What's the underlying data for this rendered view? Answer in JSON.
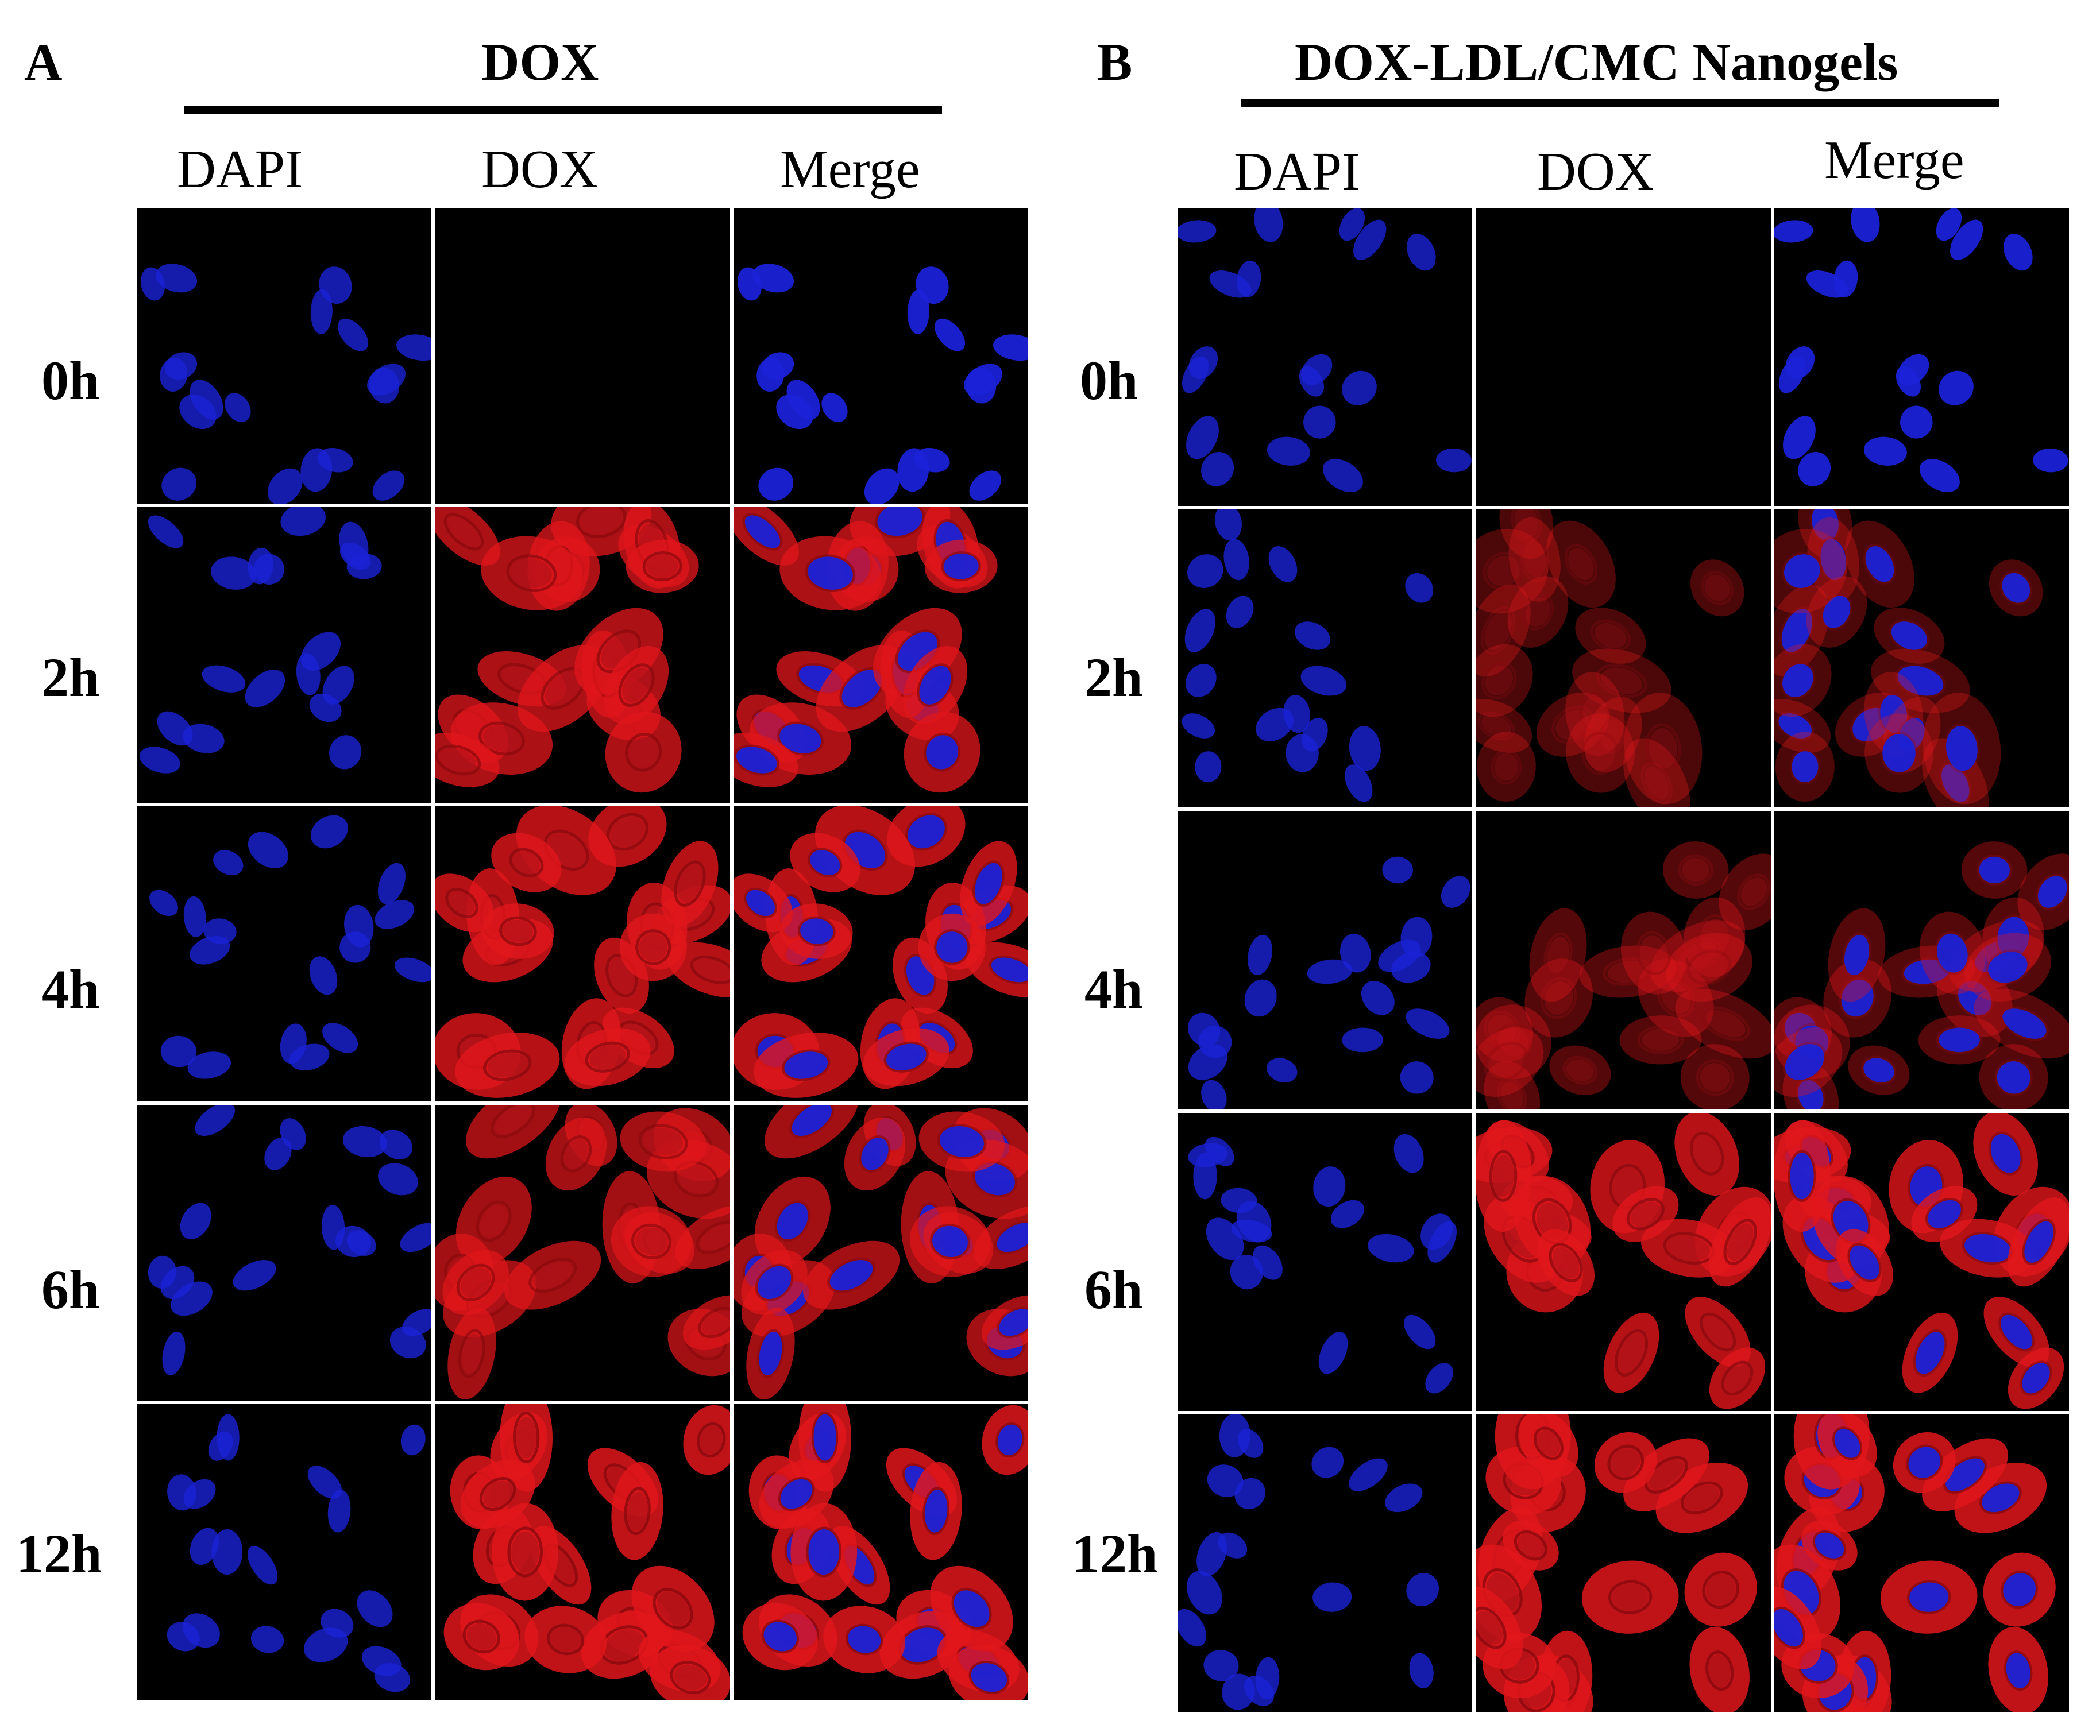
{
  "colors": {
    "background": "#ffffff",
    "dapi": "#1a22d6",
    "dox": "#e0161b",
    "field": "#000000"
  },
  "panels": [
    {
      "letter": "A",
      "title": "DOX",
      "columns": [
        "DAPI",
        "DOX",
        "Merge"
      ],
      "rows": [
        {
          "time": "0h",
          "dox_level": 0.0
        },
        {
          "time": "2h",
          "dox_level": 0.9
        },
        {
          "time": "4h",
          "dox_level": 0.95
        },
        {
          "time": "6h",
          "dox_level": 0.85
        },
        {
          "time": "12h",
          "dox_level": 1.0
        }
      ]
    },
    {
      "letter": "B",
      "title": "DOX-LDL/CMC Nanogels",
      "columns": [
        "DAPI",
        "DOX",
        "Merge"
      ],
      "rows": [
        {
          "time": "0h",
          "dox_level": 0.0
        },
        {
          "time": "2h",
          "dox_level": 0.4
        },
        {
          "time": "4h",
          "dox_level": 0.45
        },
        {
          "time": "6h",
          "dox_level": 0.95
        },
        {
          "time": "12h",
          "dox_level": 1.0
        }
      ]
    }
  ]
}
